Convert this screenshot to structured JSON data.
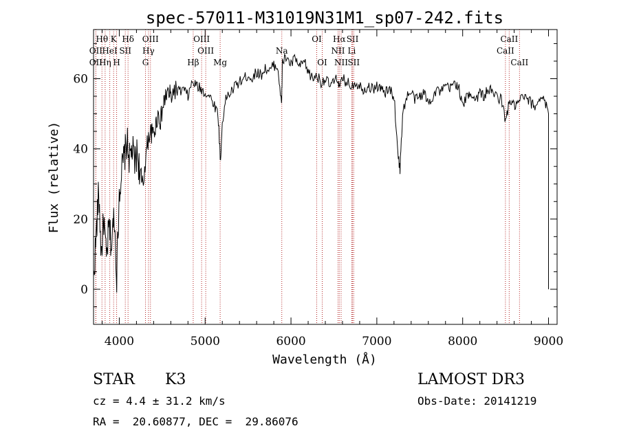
{
  "chart_data": {
    "type": "line",
    "title": "spec-57011-M31019N31M1_sp07-242.fits",
    "xlabel": "Wavelength (Å)",
    "ylabel": "Flux (relative)",
    "xlim": [
      3700,
      9100
    ],
    "ylim": [
      -10,
      74
    ],
    "x_ticks": [
      4000,
      5000,
      6000,
      7000,
      8000,
      9000
    ],
    "y_ticks": [
      0,
      20,
      40,
      60
    ],
    "grid": false,
    "line_color": "#000000",
    "marker_color": "#b22222",
    "series": [
      {
        "x": [
          3700,
          3730,
          3760,
          3790,
          3820,
          3850,
          3880,
          3910,
          3940,
          3970,
          4000,
          4030,
          4060,
          4090,
          4120,
          4150,
          4180,
          4210,
          4240,
          4270,
          4300,
          4330,
          4360,
          4390,
          4420,
          4450,
          4480,
          4510,
          4540,
          4570,
          4600,
          4650,
          4700,
          4750,
          4800,
          4850,
          4900,
          4950,
          5000,
          5050,
          5100,
          5150,
          5180,
          5200,
          5250,
          5300,
          5350,
          5400,
          5450,
          5500,
          5550,
          5600,
          5650,
          5700,
          5750,
          5800,
          5850,
          5890,
          5900,
          5950,
          6000,
          6050,
          6100,
          6150,
          6200,
          6250,
          6300,
          6350,
          6400,
          6450,
          6500,
          6550,
          6563,
          6600,
          6650,
          6700,
          6750,
          6800,
          6850,
          6900,
          6950,
          7000,
          7050,
          7100,
          7150,
          7200,
          7250,
          7270,
          7300,
          7350,
          7400,
          7450,
          7500,
          7550,
          7600,
          7650,
          7700,
          7750,
          7800,
          7850,
          7900,
          7950,
          8000,
          8050,
          8100,
          8150,
          8200,
          8250,
          8300,
          8350,
          8400,
          8450,
          8500,
          8550,
          8600,
          8650,
          8700,
          8750,
          8800,
          8850,
          8900,
          8950,
          9000
        ],
        "y": [
          3,
          15,
          28,
          10,
          20,
          8,
          18,
          12,
          22,
          4,
          28,
          34,
          38,
          42,
          37,
          40,
          36,
          39,
          33,
          28,
          36,
          42,
          45,
          44,
          46,
          50,
          48,
          52,
          55,
          56,
          55,
          57,
          56,
          57,
          55,
          59,
          58,
          57,
          56,
          55,
          53,
          50,
          36,
          48,
          55,
          56,
          58,
          59,
          60,
          61,
          60,
          62,
          61,
          63,
          62,
          64,
          63,
          52,
          65,
          66,
          64,
          66,
          63,
          65,
          62,
          60,
          61,
          59,
          60,
          58,
          59,
          60,
          57,
          60,
          59,
          58,
          59,
          58,
          57,
          58,
          57,
          58,
          57,
          56,
          57,
          55,
          38,
          34,
          50,
          55,
          56,
          54,
          55,
          56,
          53,
          55,
          57,
          56,
          58,
          57,
          59,
          58,
          52,
          55,
          56,
          54,
          56,
          55,
          57,
          56,
          55,
          54,
          48,
          54,
          52,
          53,
          55,
          54,
          53,
          52,
          55,
          54,
          50
        ]
      }
    ],
    "spectral_lines": [
      {
        "label": "Hθ",
        "x": 3798,
        "row": 1
      },
      {
        "label": "OII",
        "x": 3727,
        "row": 2
      },
      {
        "label": "OII",
        "x": 3727,
        "row": 3
      },
      {
        "label": "Hη",
        "x": 3835,
        "row": 3
      },
      {
        "label": "HeI",
        "x": 3889,
        "row": 2
      },
      {
        "label": "K",
        "x": 3934,
        "row": 1
      },
      {
        "label": "SII",
        "x": 4070,
        "row": 2
      },
      {
        "label": "H",
        "x": 3969,
        "row": 3
      },
      {
        "label": "Hδ",
        "x": 4102,
        "row": 1
      },
      {
        "label": "OIII",
        "x": 4363,
        "row": 1
      },
      {
        "label": "Hγ",
        "x": 4340,
        "row": 2
      },
      {
        "label": "G",
        "x": 4305,
        "row": 3
      },
      {
        "label": "Hβ",
        "x": 4861,
        "row": 3
      },
      {
        "label": "OIII",
        "x": 4959,
        "row": 1
      },
      {
        "label": "OIII",
        "x": 5007,
        "row": 2
      },
      {
        "label": "Mg",
        "x": 5175,
        "row": 3
      },
      {
        "label": "Na",
        "x": 5893,
        "row": 2
      },
      {
        "label": "OI",
        "x": 6300,
        "row": 1
      },
      {
        "label": "OI",
        "x": 6364,
        "row": 3
      },
      {
        "label": "Hα",
        "x": 6563,
        "row": 1
      },
      {
        "label": "NII",
        "x": 6548,
        "row": 2
      },
      {
        "label": "NII",
        "x": 6584,
        "row": 3
      },
      {
        "label": "SII",
        "x": 6717,
        "row": 1
      },
      {
        "label": "Li",
        "x": 6708,
        "row": 2
      },
      {
        "label": "SII",
        "x": 6731,
        "row": 3
      },
      {
        "label": "CaII",
        "x": 8542,
        "row": 1
      },
      {
        "label": "CaII",
        "x": 8498,
        "row": 2
      },
      {
        "label": "CaII",
        "x": 8662,
        "row": 3
      }
    ]
  },
  "info": {
    "class_label": "STAR",
    "subclass_label": "K3",
    "survey_label": "LAMOST DR3",
    "redshift_text": "cz = 4.4 ± 31.2 km/s",
    "obs_date_text": "Obs-Date: 20141219",
    "coords_text": "RA =  20.60877, DEC =  29.86076"
  }
}
